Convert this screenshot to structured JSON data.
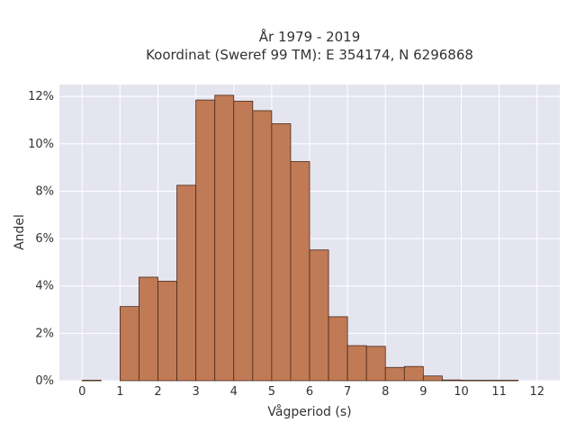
{
  "chart_data": {
    "type": "bar",
    "title": "År 1979 - 2019",
    "subtitle": "Koordinat (Sweref 99 TM): E 354174, N 6296868",
    "xlabel": "Vågperiod (s)",
    "ylabel": "Andel",
    "x_ticks": [
      "0",
      "1",
      "2",
      "3",
      "4",
      "5",
      "6",
      "7",
      "8",
      "9",
      "10",
      "11",
      "12"
    ],
    "y_ticks": [
      "0%",
      "2%",
      "4%",
      "6%",
      "8%",
      "10%",
      "12%"
    ],
    "xlim": [
      -0.6,
      12.6
    ],
    "ylim": [
      0,
      12.5
    ],
    "bin_width": 0.5,
    "bins": [
      {
        "start": 0.0,
        "value": 0.02
      },
      {
        "start": 1.0,
        "value": 3.13
      },
      {
        "start": 1.5,
        "value": 4.37
      },
      {
        "start": 2.0,
        "value": 4.2
      },
      {
        "start": 2.5,
        "value": 8.25
      },
      {
        "start": 3.0,
        "value": 11.85
      },
      {
        "start": 3.5,
        "value": 12.05
      },
      {
        "start": 4.0,
        "value": 11.8
      },
      {
        "start": 4.5,
        "value": 11.4
      },
      {
        "start": 5.0,
        "value": 10.85
      },
      {
        "start": 5.5,
        "value": 9.25
      },
      {
        "start": 6.0,
        "value": 5.52
      },
      {
        "start": 6.5,
        "value": 2.7
      },
      {
        "start": 7.0,
        "value": 1.48
      },
      {
        "start": 7.5,
        "value": 1.45
      },
      {
        "start": 8.0,
        "value": 0.56
      },
      {
        "start": 8.5,
        "value": 0.6
      },
      {
        "start": 9.0,
        "value": 0.2
      },
      {
        "start": 9.5,
        "value": 0.03
      },
      {
        "start": 10.0,
        "value": 0.02
      },
      {
        "start": 10.5,
        "value": 0.02
      },
      {
        "start": 11.0,
        "value": 0.02
      }
    ],
    "grid": true,
    "bar_color": "#c07a55",
    "bar_edge_color": "#4a2a1a",
    "background_color": "#e5e5f0"
  }
}
